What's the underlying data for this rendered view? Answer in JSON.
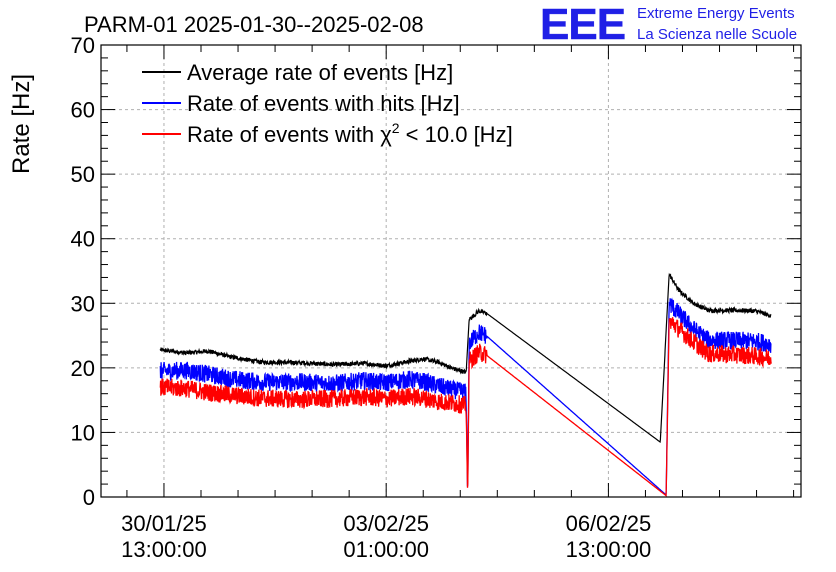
{
  "chart_data": {
    "type": "line",
    "title": "PARM-01 2025-01-30--2025-02-08",
    "ylabel": "Rate [Hz]",
    "xlabel": "",
    "ylim": [
      0,
      70
    ],
    "yticks": [
      0,
      10,
      20,
      30,
      40,
      50,
      60,
      70
    ],
    "xlim_days": [
      -0.85,
      8.6
    ],
    "xticks": [
      {
        "day": 0,
        "line1": "30/01/25",
        "line2": "13:00:00"
      },
      {
        "day": 3,
        "line1": "03/02/25",
        "line2": "01:00:00"
      },
      {
        "day": 6,
        "line1": "06/02/25",
        "line2": "13:00:00"
      }
    ],
    "grid": true,
    "legend_position": "top-left",
    "series": [
      {
        "name": "Average rate of events [Hz]",
        "legend_text": "Average rate of events [Hz]",
        "color": "#000000",
        "noise": 0.35,
        "points": [
          [
            -0.05,
            22.8
          ],
          [
            0.3,
            22.3
          ],
          [
            0.6,
            22.6
          ],
          [
            0.9,
            21.7
          ],
          [
            1.3,
            20.9
          ],
          [
            1.8,
            20.8
          ],
          [
            2.3,
            20.5
          ],
          [
            2.7,
            20.7
          ],
          [
            3.0,
            20.3
          ],
          [
            3.3,
            21.0
          ],
          [
            3.5,
            21.4
          ],
          [
            3.7,
            20.9
          ],
          [
            3.9,
            19.9
          ],
          [
            4.08,
            19.3
          ],
          [
            4.12,
            27.5
          ],
          [
            4.25,
            28.8
          ],
          [
            4.35,
            28.5
          ],
          [
            6.7,
            8.5
          ],
          [
            6.82,
            34.5
          ],
          [
            6.95,
            32.0
          ],
          [
            7.15,
            30.0
          ],
          [
            7.35,
            28.9
          ],
          [
            7.8,
            28.9
          ],
          [
            8.0,
            28.8
          ],
          [
            8.2,
            28.0
          ]
        ]
      },
      {
        "name": "Rate of events with hits [Hz]",
        "legend_text": "Rate of events with hits [Hz]",
        "color": "#0000ff",
        "noise": 1.4,
        "points": [
          [
            -0.05,
            19.5
          ],
          [
            0.3,
            19.6
          ],
          [
            0.6,
            19.0
          ],
          [
            0.9,
            18.3
          ],
          [
            1.3,
            17.8
          ],
          [
            1.8,
            17.8
          ],
          [
            2.3,
            17.6
          ],
          [
            2.7,
            18.0
          ],
          [
            3.0,
            17.7
          ],
          [
            3.3,
            18.2
          ],
          [
            3.5,
            17.9
          ],
          [
            3.7,
            17.2
          ],
          [
            3.9,
            16.6
          ],
          [
            4.08,
            16.2
          ],
          [
            4.1,
            0
          ],
          [
            4.12,
            23.8
          ],
          [
            4.25,
            25.5
          ],
          [
            4.35,
            25.0
          ],
          [
            6.78,
            0.3
          ],
          [
            6.82,
            30.0
          ],
          [
            6.95,
            28.4
          ],
          [
            7.15,
            26.0
          ],
          [
            7.35,
            24.3
          ],
          [
            7.8,
            24.2
          ],
          [
            8.0,
            24.1
          ],
          [
            8.2,
            23.7
          ]
        ]
      },
      {
        "name": "Rate of events with χ2 < 10.0 [Hz]",
        "legend_text": "Rate of events with χ",
        "legend_sup": "2",
        "legend_suffix": " < 10.0 [Hz]",
        "color": "#ff0000",
        "noise": 1.4,
        "points": [
          [
            -0.05,
            17.0
          ],
          [
            0.3,
            16.8
          ],
          [
            0.6,
            16.2
          ],
          [
            0.9,
            15.8
          ],
          [
            1.3,
            15.3
          ],
          [
            1.8,
            15.1
          ],
          [
            2.3,
            15.2
          ],
          [
            2.7,
            15.5
          ],
          [
            3.0,
            15.2
          ],
          [
            3.3,
            15.6
          ],
          [
            3.5,
            15.3
          ],
          [
            3.7,
            14.8
          ],
          [
            3.9,
            14.5
          ],
          [
            4.08,
            14.2
          ],
          [
            4.1,
            0
          ],
          [
            4.12,
            21.0
          ],
          [
            4.25,
            22.4
          ],
          [
            4.35,
            22.0
          ],
          [
            6.78,
            0.2
          ],
          [
            6.82,
            27.5
          ],
          [
            6.95,
            26.0
          ],
          [
            7.15,
            24.0
          ],
          [
            7.35,
            22.2
          ],
          [
            7.8,
            22.0
          ],
          [
            8.0,
            21.8
          ],
          [
            8.2,
            21.5
          ]
        ]
      }
    ]
  },
  "logo": {
    "text": "EEE",
    "line1": "Extreme Energy Events",
    "line2": "La Scienza nelle Scuole",
    "color": "#1f1fe6"
  }
}
